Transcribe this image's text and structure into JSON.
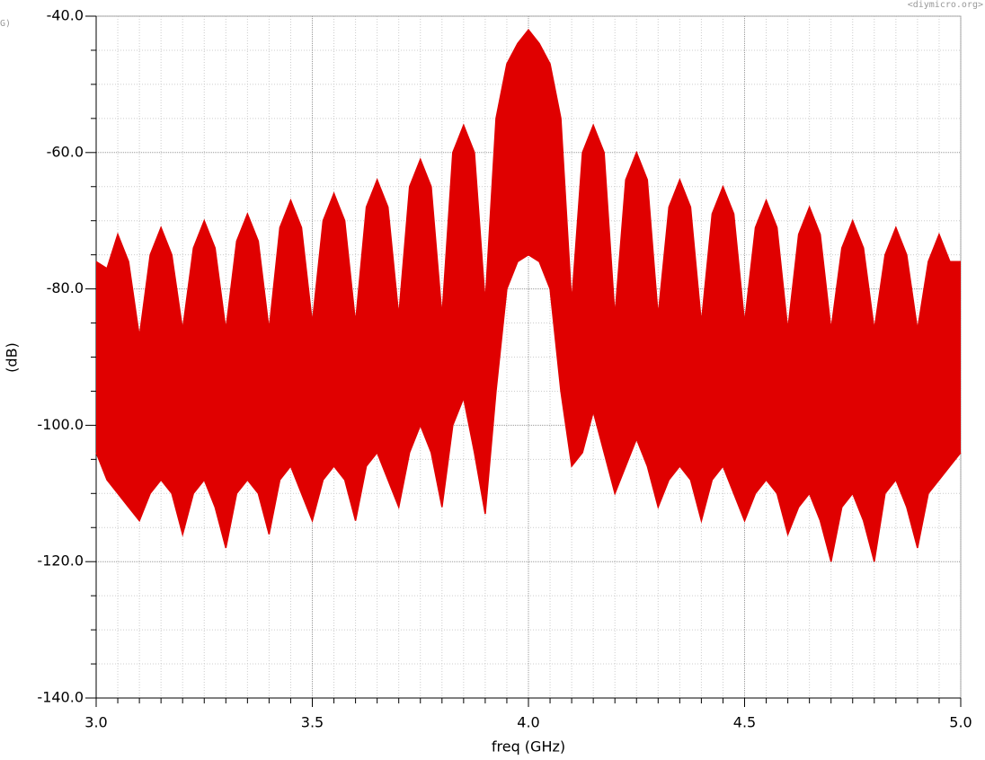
{
  "chart_data": {
    "type": "band",
    "corner_left": "G)",
    "watermark": "<diymicro.org>",
    "xlabel": "freq (GHz)",
    "ylabel": "(dB)",
    "xlim": [
      3.0,
      5.0
    ],
    "ylim": [
      -140,
      -40
    ],
    "xticks": [
      {
        "value": 3.0,
        "label": "3.0"
      },
      {
        "value": 3.5,
        "label": "3.5"
      },
      {
        "value": 4.0,
        "label": "4.0"
      },
      {
        "value": 4.5,
        "label": "4.5"
      },
      {
        "value": 5.0,
        "label": "5.0"
      }
    ],
    "yticks": [
      {
        "value": -140,
        "label": "-140.0"
      },
      {
        "value": -120,
        "label": "-120.0"
      },
      {
        "value": -100,
        "label": "-100.0"
      },
      {
        "value": -80,
        "label": "-80.0"
      },
      {
        "value": -60,
        "label": "-60.0"
      },
      {
        "value": -40,
        "label": "-40.0"
      }
    ],
    "xminorticks": [
      3.05,
      3.1,
      3.15,
      3.2,
      3.25,
      3.3,
      3.35,
      3.4,
      3.45,
      3.55,
      3.6,
      3.65,
      3.7,
      3.75,
      3.8,
      3.85,
      3.9,
      3.95,
      4.05,
      4.1,
      4.15,
      4.2,
      4.25,
      4.3,
      4.35,
      4.4,
      4.45,
      4.55,
      4.6,
      4.65,
      4.7,
      4.75,
      4.8,
      4.85,
      4.9,
      4.95
    ],
    "yminorticks": [
      -135,
      -130,
      -125,
      -115,
      -110,
      -105,
      -95,
      -90,
      -85,
      -75,
      -70,
      -65,
      -55,
      -50,
      -45
    ],
    "grid": true,
    "x": [
      3.0,
      3.025,
      3.05,
      3.075,
      3.1,
      3.125,
      3.15,
      3.175,
      3.2,
      3.225,
      3.25,
      3.275,
      3.3,
      3.325,
      3.35,
      3.375,
      3.4,
      3.425,
      3.45,
      3.475,
      3.5,
      3.525,
      3.55,
      3.575,
      3.6,
      3.625,
      3.65,
      3.675,
      3.7,
      3.725,
      3.75,
      3.775,
      3.8,
      3.825,
      3.85,
      3.875,
      3.9,
      3.925,
      3.95,
      3.975,
      4.0,
      4.025,
      4.05,
      4.075,
      4.1,
      4.125,
      4.15,
      4.175,
      4.2,
      4.225,
      4.25,
      4.275,
      4.3,
      4.325,
      4.35,
      4.375,
      4.4,
      4.425,
      4.45,
      4.475,
      4.5,
      4.525,
      4.55,
      4.575,
      4.6,
      4.625,
      4.65,
      4.675,
      4.7,
      4.725,
      4.75,
      4.775,
      4.8,
      4.825,
      4.85,
      4.875,
      4.9,
      4.925,
      4.95,
      4.975,
      5.0
    ],
    "series": [
      {
        "color": "#e00000",
        "values": [
          -76,
          -77,
          -72,
          -76,
          -87,
          -75,
          -71,
          -75,
          -86,
          -74,
          -70,
          -74,
          -86,
          -73,
          -69,
          -73,
          -86,
          -71,
          -67,
          -71,
          -85,
          -70,
          -66,
          -70,
          -85,
          -68,
          -64,
          -68,
          -84,
          -65,
          -61,
          -65,
          -84,
          -60,
          -56,
          -60,
          -82,
          -55,
          -47,
          -44,
          -42,
          -44,
          -47,
          -55,
          -82,
          -60,
          -56,
          -60,
          -84,
          -64,
          -60,
          -64,
          -84,
          -68,
          -64,
          -68,
          -85,
          -69,
          -65,
          -69,
          -85,
          -71,
          -67,
          -71,
          -86,
          -72,
          -68,
          -72,
          -86,
          -74,
          -70,
          -74,
          -86,
          -75,
          -71,
          -75,
          -86,
          -76,
          -72,
          -76,
          -76
        ]
      },
      {
        "color": "#e00000",
        "values": [
          -104,
          -108,
          -110,
          -112,
          -114,
          -110,
          -108,
          -110,
          -116,
          -110,
          -108,
          -112,
          -118,
          -110,
          -108,
          -110,
          -116,
          -108,
          -106,
          -110,
          -114,
          -108,
          -106,
          -108,
          -114,
          -106,
          -104,
          -108,
          -112,
          -104,
          -100,
          -104,
          -112,
          -100,
          -96,
          -104,
          -113,
          -95,
          -80,
          -76,
          -75,
          -76,
          -80,
          -95,
          -106,
          -104,
          -98,
          -104,
          -110,
          -106,
          -102,
          -106,
          -112,
          -108,
          -106,
          -108,
          -114,
          -108,
          -106,
          -110,
          -114,
          -110,
          -108,
          -110,
          -116,
          -112,
          -110,
          -114,
          -120,
          -112,
          -110,
          -114,
          -120,
          -110,
          -108,
          -112,
          -118,
          -110,
          -108,
          -106,
          -104
        ]
      }
    ]
  }
}
